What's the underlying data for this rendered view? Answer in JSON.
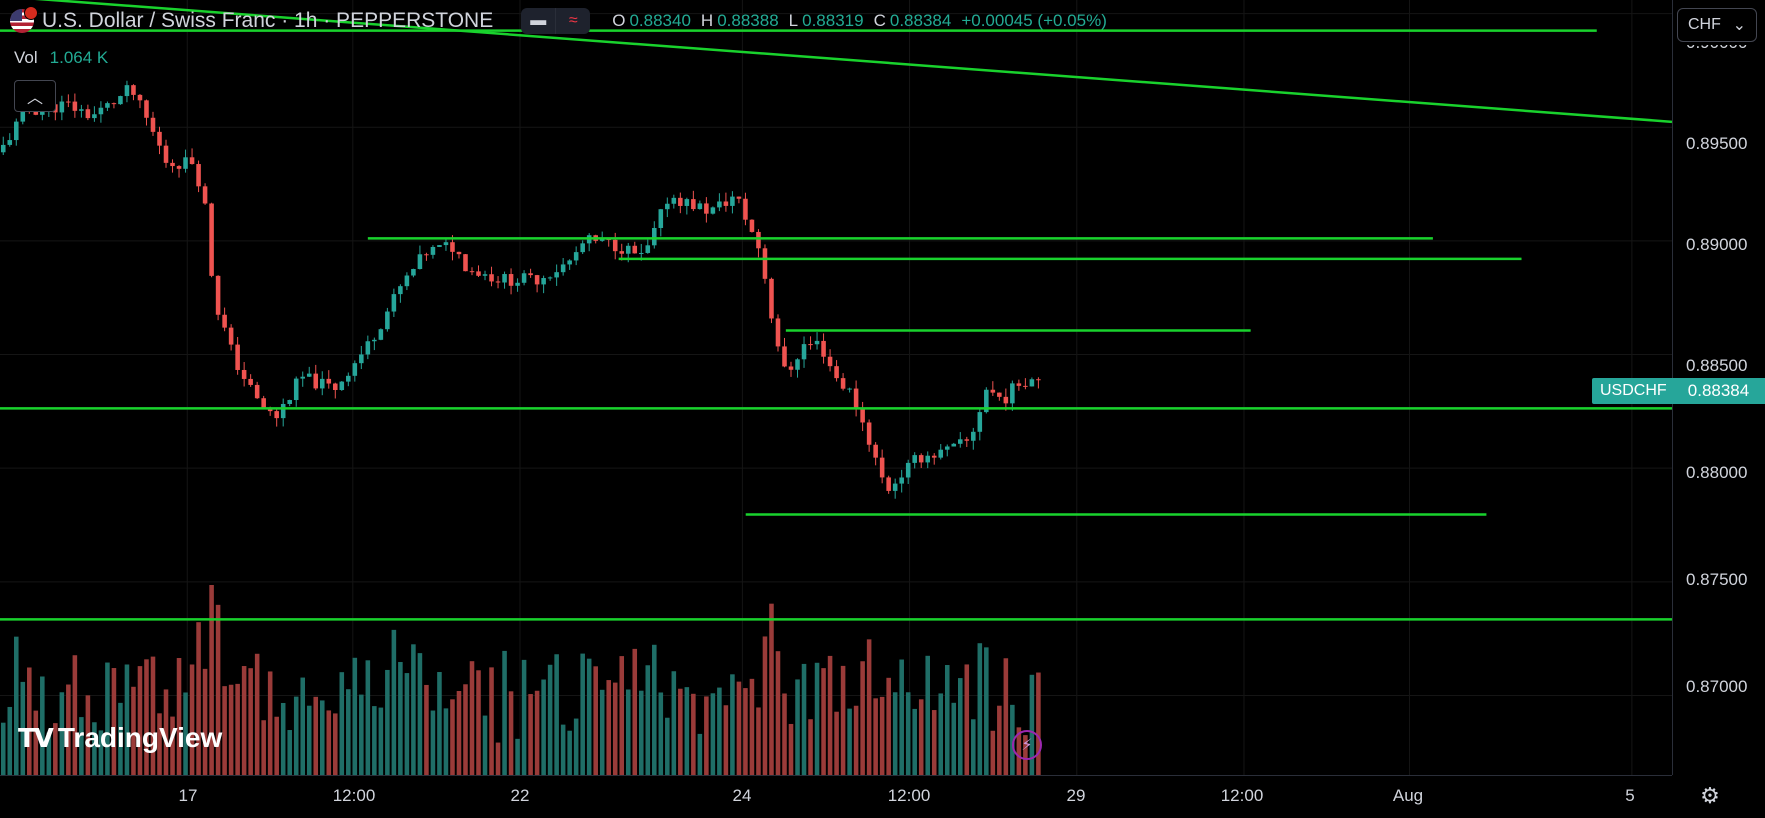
{
  "header": {
    "title": "U.S. Dollar / Swiss Franc · 1h · PEPPERSTONE",
    "toggle_dash_icon": "minus-icon",
    "toggle_wave_icon": "wave-icon",
    "ohlc": {
      "o_key": "O",
      "o": "0.88340",
      "h_key": "H",
      "h": "0.88388",
      "l_key": "L",
      "l": "0.88319",
      "c_key": "C",
      "c": "0.88384",
      "change": "+0.00045 (+0.05%)"
    }
  },
  "volume": {
    "label": "Vol",
    "value": "1.064 K"
  },
  "currency_selector": {
    "value": "CHF",
    "icon": "chevron-down-icon"
  },
  "price_axis": {
    "labels": [
      "0.89500",
      "0.89000",
      "0.88500",
      "0.88000",
      "0.87500",
      "0.87000"
    ],
    "partial_top": "0.90000"
  },
  "symbol_tag": "USDCHF",
  "last_price": "0.88384",
  "time_axis": [
    "17",
    "12:00",
    "22",
    "24",
    "12:00",
    "29",
    "12:00",
    "Aug",
    "5"
  ],
  "branding": "TradingView",
  "colors": {
    "up": "#26a69a",
    "down": "#ef5350",
    "line": "#19d22d",
    "up_vol": "#1f6e67",
    "down_vol": "#9a3b39"
  },
  "chart_data": {
    "type": "candlestick",
    "symbol": "USDCHF",
    "interval": "1h",
    "ylim": [
      0.8665,
      0.9006
    ],
    "x_range": [
      0,
      1.0
    ],
    "horizontal_levels": [
      {
        "price": 0.89925,
        "x_start": 0.0,
        "x_end": 0.955
      },
      {
        "price": 0.88921,
        "x_start": 0.37,
        "x_end": 0.91
      },
      {
        "price": 0.89011,
        "x_start": 0.22,
        "x_end": 0.857
      },
      {
        "price": 0.88606,
        "x_start": 0.47,
        "x_end": 0.748
      },
      {
        "price": 0.88263,
        "x_start": 0.0,
        "x_end": 1.0
      },
      {
        "price": 0.87796,
        "x_start": 0.446,
        "x_end": 0.889
      },
      {
        "price": 0.87335,
        "x_start": 0.0,
        "x_end": 1.0
      }
    ],
    "trend_line": {
      "start": [
        0.0,
        0.90077
      ],
      "end": [
        1.0,
        0.89524
      ]
    },
    "path": [
      [
        0.0,
        0.8939
      ],
      [
        0.015,
        0.8957
      ],
      [
        0.04,
        0.896
      ],
      [
        0.055,
        0.8955
      ],
      [
        0.07,
        0.8962
      ],
      [
        0.078,
        0.8967
      ],
      [
        0.09,
        0.895
      ],
      [
        0.1,
        0.8934
      ],
      [
        0.115,
        0.8935
      ],
      [
        0.122,
        0.892
      ],
      [
        0.128,
        0.8875
      ],
      [
        0.14,
        0.8848
      ],
      [
        0.155,
        0.8828
      ],
      [
        0.165,
        0.8822
      ],
      [
        0.18,
        0.884
      ],
      [
        0.2,
        0.8835
      ],
      [
        0.22,
        0.8854
      ],
      [
        0.24,
        0.888
      ],
      [
        0.255,
        0.8895
      ],
      [
        0.27,
        0.8898
      ],
      [
        0.28,
        0.8888
      ],
      [
        0.3,
        0.8883
      ],
      [
        0.32,
        0.8883
      ],
      [
        0.34,
        0.889
      ],
      [
        0.35,
        0.89
      ],
      [
        0.37,
        0.8898
      ],
      [
        0.385,
        0.8892
      ],
      [
        0.4,
        0.892
      ],
      [
        0.41,
        0.8917
      ],
      [
        0.425,
        0.8913
      ],
      [
        0.44,
        0.892
      ],
      [
        0.455,
        0.8895
      ],
      [
        0.462,
        0.8865
      ],
      [
        0.47,
        0.884
      ],
      [
        0.48,
        0.8854
      ],
      [
        0.49,
        0.8855
      ],
      [
        0.5,
        0.884
      ],
      [
        0.51,
        0.8832
      ],
      [
        0.52,
        0.8812
      ],
      [
        0.53,
        0.879
      ],
      [
        0.54,
        0.8798
      ],
      [
        0.55,
        0.8805
      ],
      [
        0.565,
        0.8807
      ],
      [
        0.58,
        0.8812
      ],
      [
        0.59,
        0.8835
      ],
      [
        0.6,
        0.883
      ],
      [
        0.61,
        0.8838
      ],
      [
        0.623,
        0.8841
      ]
    ],
    "candle_count": 160,
    "volume_bars_count": 160
  }
}
